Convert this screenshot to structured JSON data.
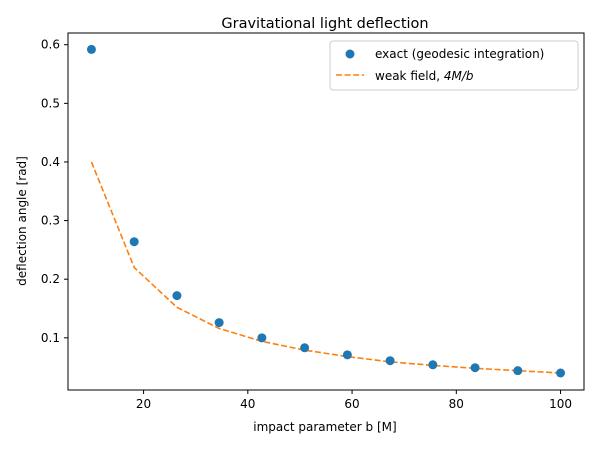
{
  "chart_data": {
    "type": "scatter",
    "title": "Gravitational light deflection",
    "xlabel": "impact parameter b [M]",
    "ylabel": "deflection angle [rad]",
    "xlim": [
      5.5,
      104.5
    ],
    "ylim": [
      0.011,
      0.62
    ],
    "xticks": [
      20,
      40,
      60,
      80,
      100
    ],
    "yticks": [
      0.1,
      0.2,
      0.3,
      0.4,
      0.5,
      0.6
    ],
    "ytick_labels": [
      "0.1",
      "0.2",
      "0.3",
      "0.4",
      "0.5",
      "0.6"
    ],
    "grid": false,
    "legend_position": "top-right",
    "series": [
      {
        "name": "exact (geodesic integration)",
        "style": "markers",
        "color": "#1f77b4",
        "x": [
          10,
          18.2,
          26.4,
          34.5,
          42.7,
          50.9,
          59.1,
          67.3,
          75.5,
          83.6,
          91.8,
          100
        ],
        "y": [
          0.592,
          0.264,
          0.172,
          0.126,
          0.1,
          0.083,
          0.071,
          0.061,
          0.054,
          0.049,
          0.044,
          0.04
        ]
      },
      {
        "name": "weak field, 4M/b",
        "name_prefix": "weak field, ",
        "name_math": "4M/b",
        "style": "dashed-line",
        "color": "#ff7f0e",
        "x": [
          10,
          18.2,
          26.4,
          34.5,
          42.7,
          50.9,
          59.1,
          67.3,
          75.5,
          83.6,
          91.8,
          100
        ],
        "y": [
          0.4,
          0.22,
          0.152,
          0.116,
          0.094,
          0.079,
          0.068,
          0.059,
          0.053,
          0.048,
          0.044,
          0.04
        ]
      }
    ]
  }
}
